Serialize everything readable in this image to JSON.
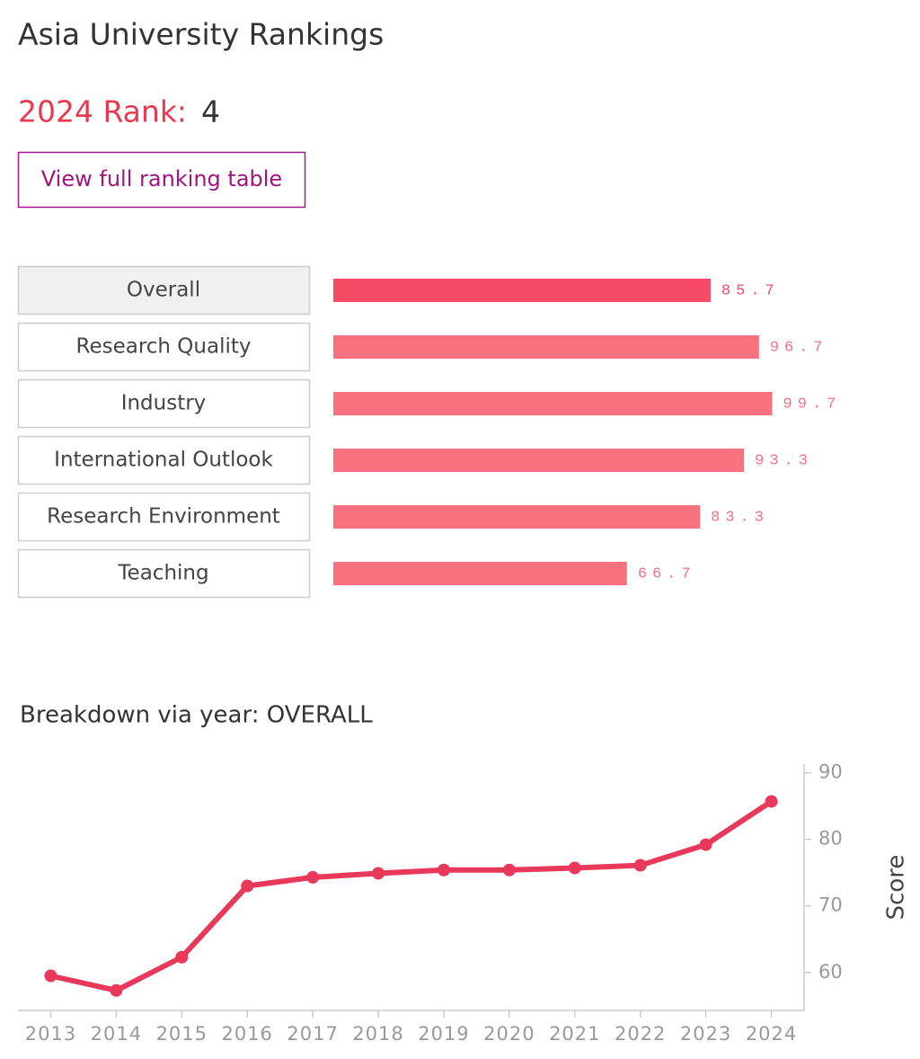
{
  "header": {
    "title": "Asia University Rankings",
    "rank_label": "2024 Rank:",
    "rank_value": 4,
    "button": "View full ranking table"
  },
  "chart_data": [
    {
      "type": "bar",
      "orientation": "horizontal",
      "categories": [
        "Overall",
        "Research Quality",
        "Industry",
        "International Outlook",
        "Research Environment",
        "Teaching"
      ],
      "values": [
        85.7,
        96.7,
        99.7,
        93.3,
        83.3,
        66.7
      ],
      "colors": [
        "#f64a67",
        "#f7717f",
        "#f7717f",
        "#f7717f",
        "#f7717f",
        "#f7717f"
      ]
    },
    {
      "type": "line",
      "title": "Breakdown via year: OVERALL",
      "x": [
        2013,
        2014,
        2015,
        2016,
        2017,
        2018,
        2019,
        2020,
        2021,
        2022,
        2023,
        2024
      ],
      "values": [
        59.5,
        57.3,
        62.3,
        73.0,
        74.3,
        74.9,
        75.4,
        75.4,
        75.7,
        76.1,
        79.2,
        85.7
      ],
      "color": "#e8395a",
      "xlim": [
        2012.5,
        2024.5
      ],
      "xticks": [
        2013,
        2014,
        2015,
        2016,
        2017,
        2018,
        2019,
        2020,
        2021,
        2022,
        2023,
        2024
      ],
      "ylim": [
        54.3,
        91.3
      ],
      "yticks": [
        60,
        70,
        80,
        90
      ],
      "ylabel": "Score",
      "axis_side": "right"
    }
  ]
}
